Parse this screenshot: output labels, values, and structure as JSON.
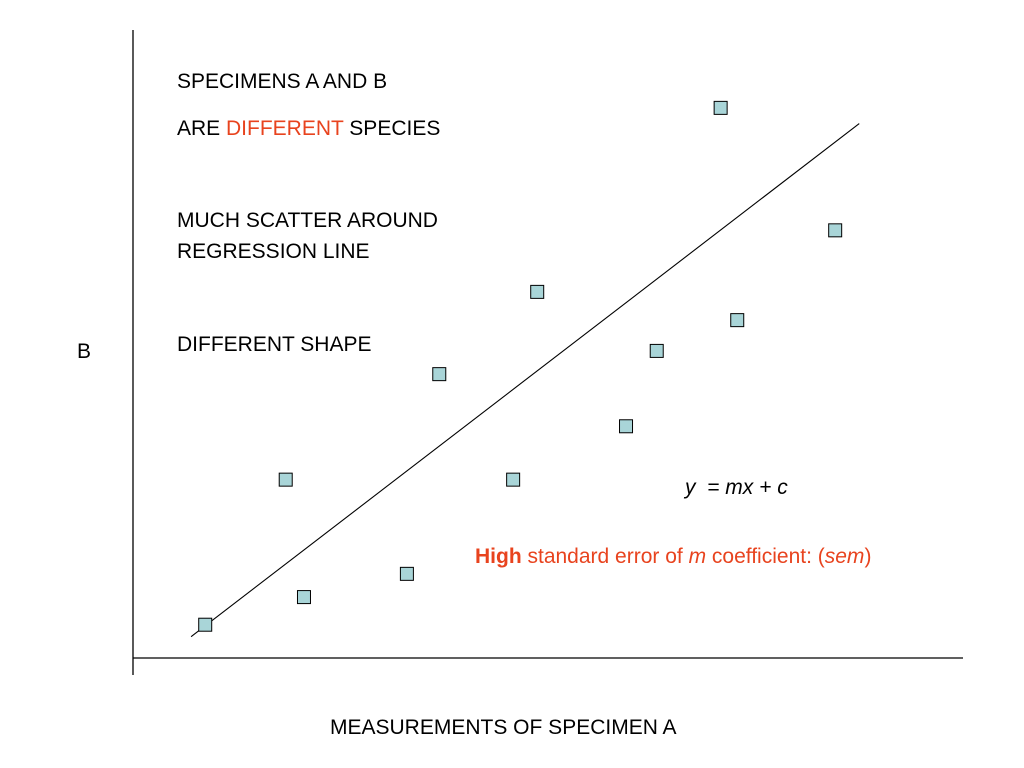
{
  "chart_data": {
    "type": "scatter",
    "xlabel": "MEASUREMENTS OF SPECIMEN A",
    "ylabel": "B",
    "xlim": [
      0,
      100
    ],
    "ylim": [
      0,
      100
    ],
    "grid": false,
    "points": [
      {
        "x": 8.7,
        "y": 5.3
      },
      {
        "x": 18.4,
        "y": 28.4
      },
      {
        "x": 20.6,
        "y": 9.7
      },
      {
        "x": 33.0,
        "y": 13.4
      },
      {
        "x": 36.9,
        "y": 45.2
      },
      {
        "x": 45.8,
        "y": 28.4
      },
      {
        "x": 48.7,
        "y": 58.3
      },
      {
        "x": 59.4,
        "y": 36.9
      },
      {
        "x": 63.1,
        "y": 48.9
      },
      {
        "x": 72.8,
        "y": 53.8
      },
      {
        "x": 70.8,
        "y": 87.6
      },
      {
        "x": 84.6,
        "y": 68.1
      }
    ],
    "regression_line": {
      "x": [
        7.0,
        87.5
      ],
      "y": [
        3.4,
        85.1
      ]
    },
    "marker_fill": "#a9d5d8",
    "marker_stroke": "#000000",
    "equation": {
      "y": "y",
      "equals": "=",
      "rhs": "mx + c"
    }
  },
  "annotations": {
    "line1": "SPECIMENS A AND B",
    "line2_pre": "ARE ",
    "line2_highlight": "DIFFERENT",
    "line2_post": " SPECIES",
    "line3": "MUCH SCATTER AROUND",
    "line4": "REGRESSION LINE",
    "line5": "DIFFERENT SHAPE"
  },
  "sem_note": {
    "bold": "High",
    "text1": " standard error of ",
    "m": "m",
    "text2": " coefficient: (",
    "sem": "sem",
    "text3": ")"
  },
  "colors": {
    "highlight": "#e8431e",
    "axis": "#000000"
  }
}
